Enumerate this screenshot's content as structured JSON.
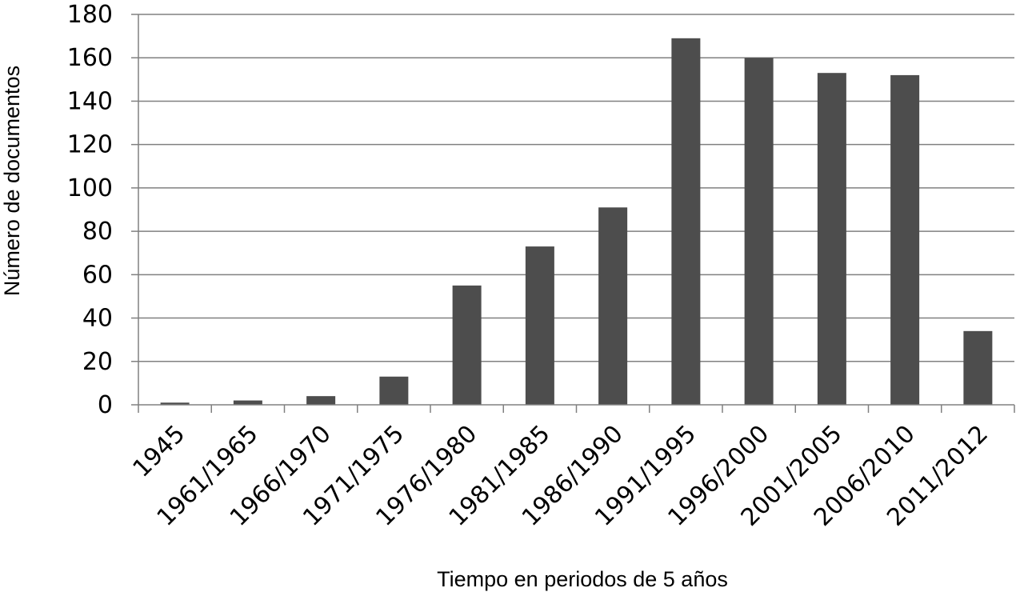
{
  "chart_data": {
    "type": "bar",
    "title": "",
    "xlabel": "Tiempo en periodos de 5 años",
    "ylabel": "Número de documentos",
    "categories": [
      "1945",
      "1961/1965",
      "1966/1970",
      "1971/1975",
      "1976/1980",
      "1981/1985",
      "1986/1990",
      "1991/1995",
      "1996/2000",
      "2001/2005",
      "2006/2010",
      "2011/2012"
    ],
    "values": [
      1,
      2,
      4,
      13,
      55,
      73,
      91,
      169,
      160,
      153,
      152,
      34
    ],
    "ylim": [
      0,
      180
    ],
    "yticks": [
      0,
      20,
      40,
      60,
      80,
      100,
      120,
      140,
      160,
      180
    ],
    "grid": true,
    "colors": {
      "bar": "#4d4d4d",
      "grid": "#808080"
    }
  }
}
